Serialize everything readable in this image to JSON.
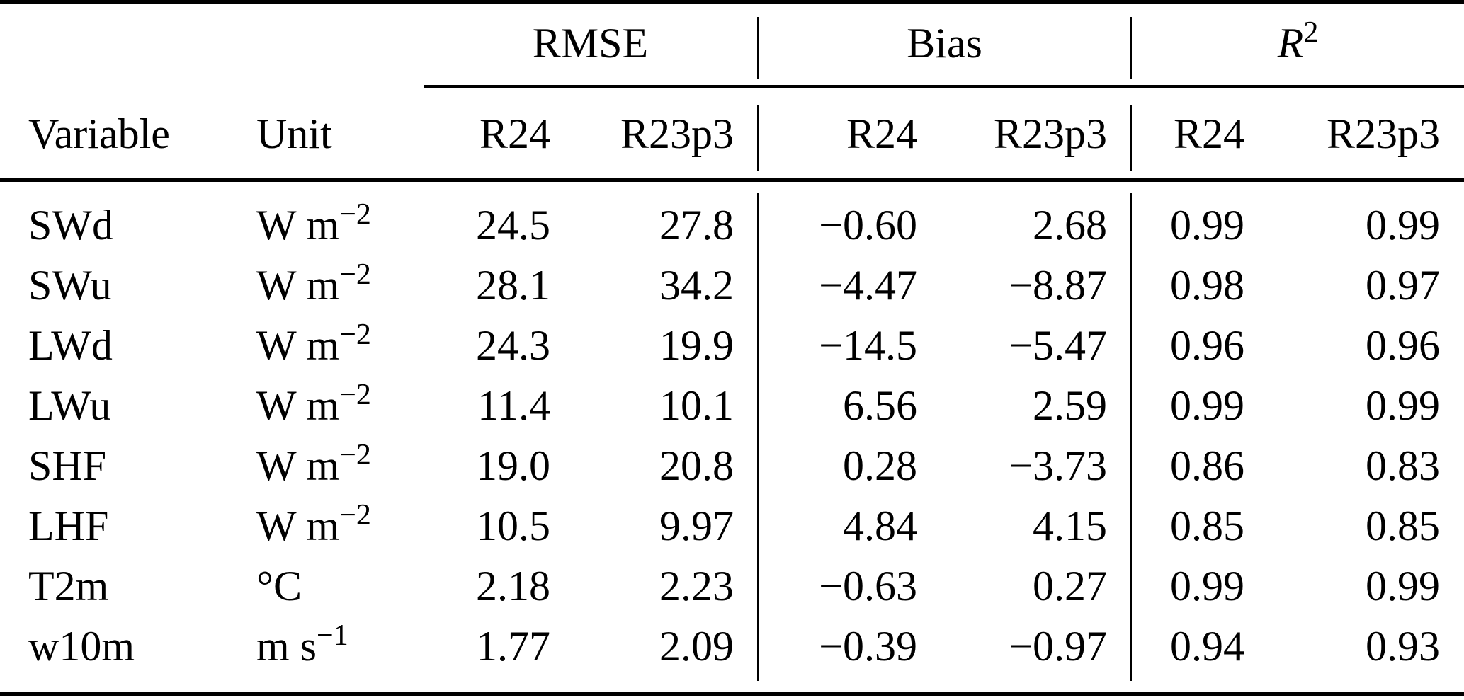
{
  "colors": {
    "text": "#000000",
    "background": "#ffffff",
    "rules": "#000000"
  },
  "table": {
    "column_headers": {
      "variable": "Variable",
      "unit": "Unit",
      "model_a": "R24",
      "model_b": "R23p3"
    },
    "groups": {
      "rmse": "RMSE",
      "bias": "Bias",
      "r2_base": "R",
      "r2_sup": "2"
    },
    "rows": [
      {
        "variable": "SWd",
        "unit_base": "W m",
        "unit_sup": "−2",
        "rmse_r24": "24.5",
        "rmse_r23p3": "27.8",
        "bias_r24": "−0.60",
        "bias_r23p3": "2.68",
        "r2_r24": "0.99",
        "r2_r23p3": "0.99"
      },
      {
        "variable": "SWu",
        "unit_base": "W m",
        "unit_sup": "−2",
        "rmse_r24": "28.1",
        "rmse_r23p3": "34.2",
        "bias_r24": "−4.47",
        "bias_r23p3": "−8.87",
        "r2_r24": "0.98",
        "r2_r23p3": "0.97"
      },
      {
        "variable": "LWd",
        "unit_base": "W m",
        "unit_sup": "−2",
        "rmse_r24": "24.3",
        "rmse_r23p3": "19.9",
        "bias_r24": "−14.5",
        "bias_r23p3": "−5.47",
        "r2_r24": "0.96",
        "r2_r23p3": "0.96"
      },
      {
        "variable": "LWu",
        "unit_base": "W m",
        "unit_sup": "−2",
        "rmse_r24": "11.4",
        "rmse_r23p3": "10.1",
        "bias_r24": "6.56",
        "bias_r23p3": "2.59",
        "r2_r24": "0.99",
        "r2_r23p3": "0.99"
      },
      {
        "variable": "SHF",
        "unit_base": "W m",
        "unit_sup": "−2",
        "rmse_r24": "19.0",
        "rmse_r23p3": "20.8",
        "bias_r24": "0.28",
        "bias_r23p3": "−3.73",
        "r2_r24": "0.86",
        "r2_r23p3": "0.83"
      },
      {
        "variable": "LHF",
        "unit_base": "W m",
        "unit_sup": "−2",
        "rmse_r24": "10.5",
        "rmse_r23p3": "9.97",
        "bias_r24": "4.84",
        "bias_r23p3": "4.15",
        "r2_r24": "0.85",
        "r2_r23p3": "0.85"
      },
      {
        "variable": "T2m",
        "unit_base": "°C",
        "unit_sup": "",
        "rmse_r24": "2.18",
        "rmse_r23p3": "2.23",
        "bias_r24": "−0.63",
        "bias_r23p3": "0.27",
        "r2_r24": "0.99",
        "r2_r23p3": "0.99"
      },
      {
        "variable": "w10m",
        "unit_base": "m s",
        "unit_sup": "−1",
        "rmse_r24": "1.77",
        "rmse_r23p3": "2.09",
        "bias_r24": "−0.39",
        "bias_r23p3": "−0.97",
        "r2_r24": "0.94",
        "r2_r23p3": "0.93"
      }
    ]
  }
}
